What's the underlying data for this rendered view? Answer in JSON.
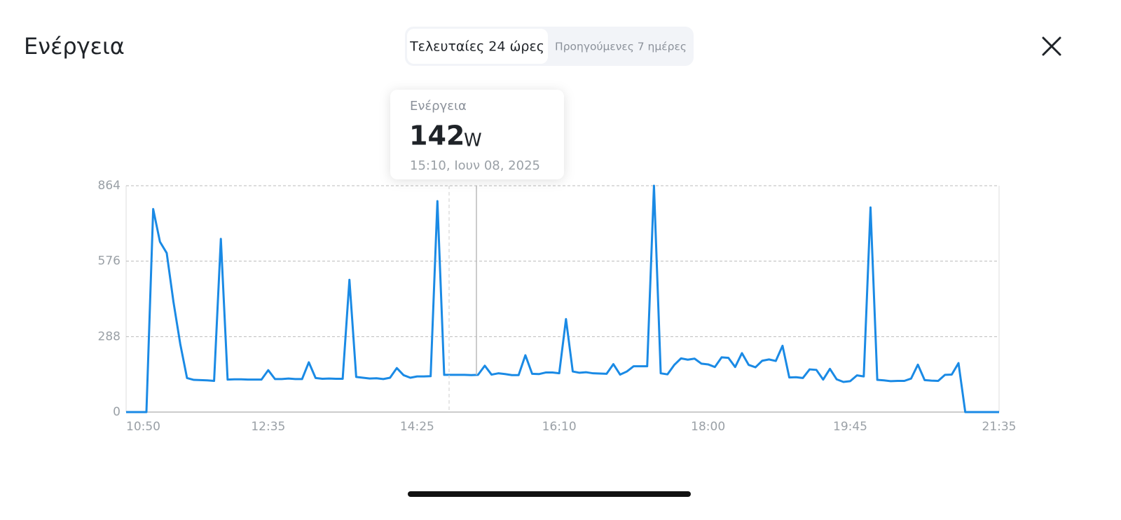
{
  "header": {
    "title": "Ενέργεια"
  },
  "tabs": [
    "Τελευταίες 24 ώρες",
    "Προηγούμενες 7 ημέρες"
  ],
  "tooltip": {
    "label": "Ενέργεια",
    "value": 142,
    "unit": "W",
    "time": "15:10, Ιουν 08, 2025"
  },
  "chart_data": {
    "type": "line",
    "color": "#1a8ae5",
    "x": [
      "10:50",
      "10:55",
      "11:00",
      "11:05",
      "11:10",
      "11:15",
      "11:20",
      "11:25",
      "11:30",
      "11:35",
      "11:40",
      "11:45",
      "11:50",
      "11:55",
      "12:00",
      "12:05",
      "12:10",
      "12:15",
      "12:20",
      "12:25",
      "12:30",
      "12:35",
      "12:40",
      "12:45",
      "12:50",
      "12:55",
      "13:00",
      "13:05",
      "13:10",
      "13:15",
      "13:20",
      "13:25",
      "13:30",
      "13:35",
      "13:40",
      "13:45",
      "13:50",
      "13:55",
      "14:00",
      "14:05",
      "14:10",
      "14:15",
      "14:20",
      "14:25",
      "14:30",
      "14:35",
      "14:40",
      "14:45",
      "14:50",
      "14:55",
      "15:00",
      "15:05",
      "15:10",
      "15:15",
      "15:20",
      "15:25",
      "15:30",
      "15:35",
      "15:40",
      "15:45",
      "15:50",
      "15:55",
      "16:00",
      "16:05",
      "16:10",
      "16:15",
      "16:20",
      "16:25",
      "16:30",
      "16:35",
      "16:40",
      "16:45",
      "16:50",
      "16:55",
      "17:00",
      "17:05",
      "17:10",
      "17:15",
      "17:20",
      "17:25",
      "17:30",
      "17:35",
      "17:40",
      "17:45",
      "17:50",
      "17:55",
      "18:00",
      "18:05",
      "18:10",
      "18:15",
      "18:20",
      "18:25",
      "18:30",
      "18:35",
      "18:40",
      "18:45",
      "18:50",
      "18:55",
      "19:00",
      "19:05",
      "19:10",
      "19:15",
      "19:20",
      "19:25",
      "19:30",
      "19:35",
      "19:40",
      "19:45",
      "19:50",
      "19:55",
      "20:00",
      "20:05",
      "20:10",
      "20:15",
      "20:20",
      "20:25",
      "20:30",
      "20:35",
      "20:40",
      "20:45",
      "20:50",
      "20:55",
      "21:00",
      "21:05",
      "21:10",
      "21:15",
      "21:20",
      "21:25",
      "21:30",
      "21:35"
    ],
    "values": [
      0,
      0,
      0,
      0,
      775,
      650,
      607,
      420,
      260,
      130,
      123,
      122,
      121,
      119,
      661,
      124,
      125,
      125,
      124,
      124,
      124,
      160,
      126,
      126,
      128,
      126,
      126,
      190,
      130,
      127,
      128,
      127,
      127,
      505,
      134,
      131,
      128,
      129,
      126,
      131,
      168,
      141,
      131,
      136,
      136,
      137,
      805,
      142,
      142,
      142,
      142,
      141,
      142,
      177,
      143,
      148,
      145,
      141,
      141,
      217,
      146,
      145,
      151,
      151,
      148,
      355,
      155,
      150,
      152,
      148,
      147,
      146,
      183,
      143,
      155,
      175,
      175,
      175,
      864,
      148,
      144,
      180,
      205,
      200,
      204,
      185,
      182,
      172,
      209,
      207,
      172,
      225,
      180,
      171,
      196,
      201,
      195,
      253,
      132,
      133,
      130,
      163,
      161,
      124,
      165,
      125,
      115,
      118,
      140,
      136,
      781,
      123,
      121,
      118,
      119,
      119,
      128,
      181,
      122,
      120,
      119,
      142,
      143,
      187,
      0,
      0,
      0,
      0,
      0,
      0
    ],
    "ylim": [
      0,
      864
    ],
    "yticks": [
      0,
      288,
      576,
      864
    ],
    "xticks": [
      "10:50",
      "12:35",
      "14:25",
      "16:10",
      "18:00",
      "19:45",
      "21:35"
    ],
    "grid": true
  }
}
